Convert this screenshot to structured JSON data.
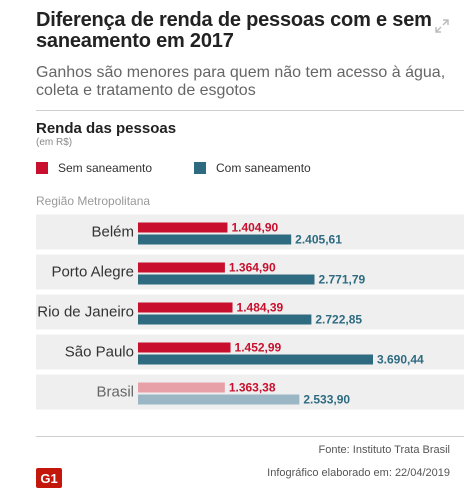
{
  "header": {
    "title": "Diferença de renda de pessoas com e sem saneamento em 2017",
    "subtitle": "Ganhos são menores para quem não tem acesso à água, coleta e tratamento de esgotos",
    "expand_icon": "expand-arrows-icon"
  },
  "chart_data": {
    "type": "bar",
    "orientation": "horizontal",
    "title": "Renda das pessoas",
    "unit_label": "(em R$)",
    "group_label": "Região Metropolitana",
    "categories": [
      "Belém",
      "Porto Alegre",
      "Rio de Janeiro",
      "São Paulo",
      "Brasil"
    ],
    "series": [
      {
        "name": "Sem saneamento",
        "color": "#c8102e",
        "highlight_color": "#e8a0a8",
        "values": [
          1404.9,
          1364.9,
          1484.39,
          1452.99,
          1363.38
        ],
        "labels": [
          "1.404,90",
          "1.364,90",
          "1.484,39",
          "1.452,99",
          "1.363,38"
        ]
      },
      {
        "name": "Com saneamento",
        "color": "#2e6b80",
        "highlight_color": "#9bb7c5",
        "values": [
          2405.61,
          2771.79,
          2722.85,
          3690.44,
          2533.9
        ],
        "labels": [
          "2.405,61",
          "2.771,79",
          "2.722,85",
          "3.690,44",
          "2.533,90"
        ]
      }
    ],
    "highlight_category": "Brasil",
    "legend_position": "top-left",
    "grid": false
  },
  "footer": {
    "source": "Fonte: Instituto Trata Brasil",
    "credit": "Infográfico elaborado em: 22/04/2019",
    "logo_text": "G1",
    "logo_color": "#c4170c"
  }
}
